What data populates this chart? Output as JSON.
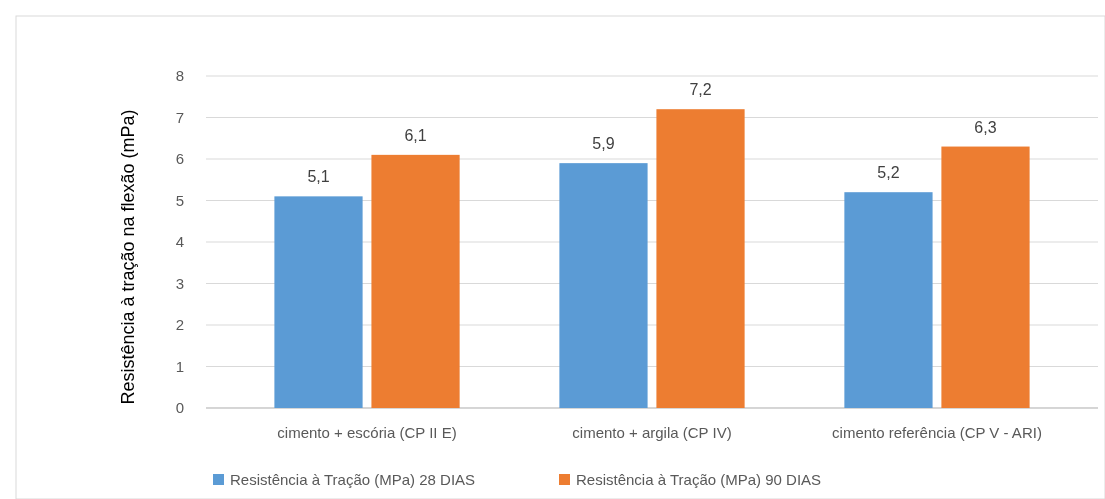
{
  "chart_data": {
    "type": "bar",
    "ylabel": "Resistência à tração na flexão (mPa)",
    "categories": [
      "cimento + escória (CP II E)",
      "cimento + argila (CP IV)",
      "cimento referência (CP V - ARI)"
    ],
    "series": [
      {
        "name": "Resistência à Tração (MPa) 28 DIAS",
        "color": "#5b9bd5",
        "values": [
          5.1,
          5.9,
          5.2
        ],
        "value_labels": [
          "5,1",
          "5,9",
          "5,2"
        ]
      },
      {
        "name": "Resistência à Tração (MPa) 90 DIAS",
        "color": "#ed7d31",
        "values": [
          6.1,
          7.2,
          6.3
        ],
        "value_labels": [
          "6,1",
          "7,2",
          "6,3"
        ]
      }
    ],
    "ylim": [
      0,
      8
    ],
    "yticks": [
      0,
      1,
      2,
      3,
      4,
      5,
      6,
      7,
      8
    ],
    "grid": "y",
    "legend": "bottom"
  }
}
